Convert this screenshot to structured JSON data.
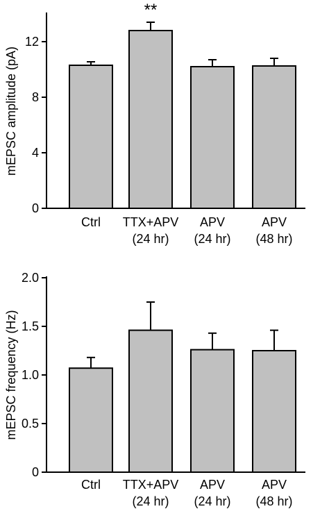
{
  "chart_data": [
    {
      "type": "bar",
      "title": "",
      "xlabel": "",
      "ylabel": "mEPSC amplitude (pA)",
      "categories": [
        [
          "Ctrl"
        ],
        [
          "TTX+APV",
          "(24 hr)"
        ],
        [
          "APV",
          "(24 hr)"
        ],
        [
          "APV",
          "(48 hr)"
        ]
      ],
      "values": [
        10.3,
        12.8,
        10.2,
        10.25
      ],
      "errors": [
        0.25,
        0.6,
        0.5,
        0.55
      ],
      "ylim": [
        0,
        14
      ],
      "yticks": [
        0,
        4,
        8,
        12
      ],
      "ytick_labels": [
        "0",
        "4",
        "8",
        "12"
      ],
      "annotations": [
        {
          "category_index": 1,
          "text": "**"
        }
      ],
      "bar_color": "#c0c0c0",
      "grid": false
    },
    {
      "type": "bar",
      "title": "",
      "xlabel": "",
      "ylabel": "mEPSC frequency (Hz)",
      "categories": [
        [
          "Ctrl"
        ],
        [
          "TTX+APV",
          "(24 hr)"
        ],
        [
          "APV",
          "(24 hr)"
        ],
        [
          "APV",
          "(48 hr)"
        ]
      ],
      "values": [
        1.07,
        1.46,
        1.26,
        1.25
      ],
      "errors": [
        0.11,
        0.29,
        0.17,
        0.21
      ],
      "ylim": [
        0,
        2.0
      ],
      "yticks": [
        0,
        0.5,
        1.0,
        1.5,
        2.0
      ],
      "ytick_labels": [
        "0",
        "0.5",
        "1.0",
        "1.5",
        "2.0"
      ],
      "annotations": [],
      "bar_color": "#c0c0c0",
      "grid": false
    }
  ]
}
